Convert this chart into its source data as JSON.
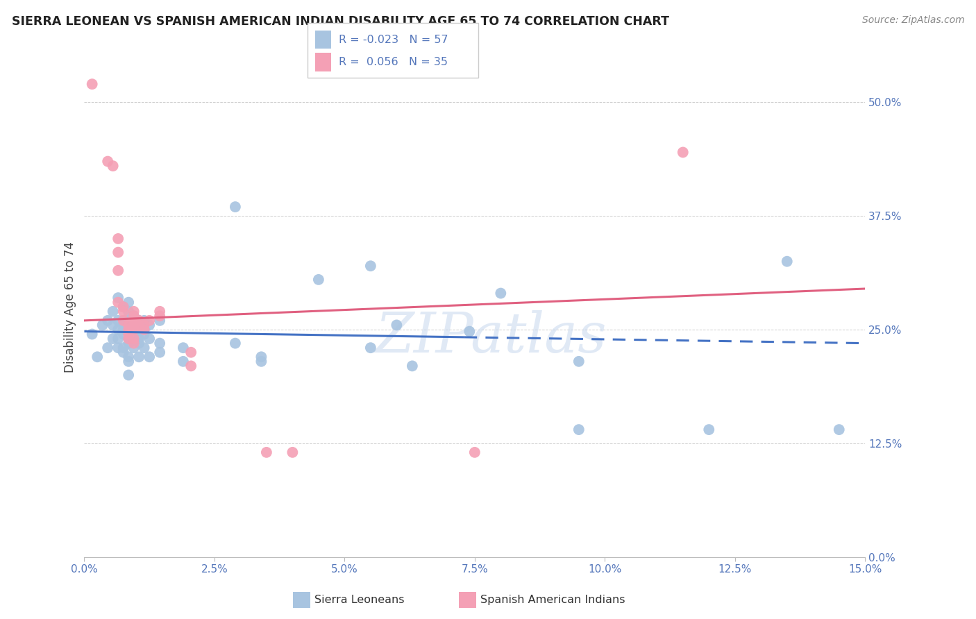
{
  "title": "SIERRA LEONEAN VS SPANISH AMERICAN INDIAN DISABILITY AGE 65 TO 74 CORRELATION CHART",
  "source": "Source: ZipAtlas.com",
  "ylabel": "Disability Age 65 to 74",
  "xlabel_vals": [
    0.0,
    2.5,
    5.0,
    7.5,
    10.0,
    12.5,
    15.0
  ],
  "ylabel_vals": [
    0.0,
    12.5,
    25.0,
    37.5,
    50.0
  ],
  "xmin": 0.0,
  "xmax": 15.0,
  "ymin": 0.0,
  "ymax": 55.0,
  "blue_color": "#a8c4e0",
  "pink_color": "#f4a0b5",
  "blue_line_color": "#4472c4",
  "pink_line_color": "#e06080",
  "watermark": "ZIPatlas",
  "blue_scatter": [
    [
      0.15,
      24.5
    ],
    [
      0.25,
      22.0
    ],
    [
      0.35,
      25.5
    ],
    [
      0.45,
      26.0
    ],
    [
      0.45,
      23.0
    ],
    [
      0.55,
      27.0
    ],
    [
      0.55,
      25.5
    ],
    [
      0.55,
      24.0
    ],
    [
      0.65,
      28.5
    ],
    [
      0.65,
      26.0
    ],
    [
      0.65,
      25.0
    ],
    [
      0.65,
      24.0
    ],
    [
      0.65,
      23.0
    ],
    [
      0.75,
      27.5
    ],
    [
      0.75,
      26.0
    ],
    [
      0.75,
      25.5
    ],
    [
      0.75,
      25.0
    ],
    [
      0.75,
      24.5
    ],
    [
      0.75,
      23.0
    ],
    [
      0.75,
      22.5
    ],
    [
      0.85,
      28.0
    ],
    [
      0.85,
      27.0
    ],
    [
      0.85,
      26.0
    ],
    [
      0.85,
      25.5
    ],
    [
      0.85,
      25.0
    ],
    [
      0.85,
      24.0
    ],
    [
      0.85,
      23.5
    ],
    [
      0.85,
      22.0
    ],
    [
      0.85,
      21.5
    ],
    [
      0.85,
      20.0
    ],
    [
      0.95,
      26.5
    ],
    [
      0.95,
      25.5
    ],
    [
      0.95,
      25.0
    ],
    [
      0.95,
      24.5
    ],
    [
      0.95,
      23.0
    ],
    [
      1.05,
      26.0
    ],
    [
      1.05,
      25.5
    ],
    [
      1.05,
      25.0
    ],
    [
      1.05,
      24.0
    ],
    [
      1.05,
      23.5
    ],
    [
      1.05,
      22.0
    ],
    [
      1.15,
      26.0
    ],
    [
      1.15,
      25.0
    ],
    [
      1.15,
      24.5
    ],
    [
      1.15,
      23.0
    ],
    [
      1.25,
      25.5
    ],
    [
      1.25,
      24.0
    ],
    [
      1.25,
      22.0
    ],
    [
      1.45,
      26.0
    ],
    [
      1.45,
      23.5
    ],
    [
      1.45,
      22.5
    ],
    [
      1.9,
      23.0
    ],
    [
      1.9,
      21.5
    ],
    [
      2.9,
      38.5
    ],
    [
      2.9,
      23.5
    ],
    [
      3.4,
      22.0
    ],
    [
      3.4,
      21.5
    ],
    [
      4.5,
      30.5
    ],
    [
      5.5,
      32.0
    ],
    [
      5.5,
      23.0
    ],
    [
      6.0,
      25.5
    ],
    [
      6.3,
      21.0
    ],
    [
      7.4,
      24.8
    ],
    [
      8.0,
      29.0
    ],
    [
      9.5,
      21.5
    ],
    [
      9.5,
      14.0
    ],
    [
      12.0,
      14.0
    ],
    [
      13.5,
      32.5
    ],
    [
      14.5,
      14.0
    ]
  ],
  "pink_scatter": [
    [
      0.15,
      52.0
    ],
    [
      0.45,
      43.5
    ],
    [
      0.55,
      43.0
    ],
    [
      0.65,
      35.0
    ],
    [
      0.65,
      33.5
    ],
    [
      0.65,
      31.5
    ],
    [
      0.65,
      28.0
    ],
    [
      0.75,
      27.5
    ],
    [
      0.75,
      27.0
    ],
    [
      0.75,
      26.0
    ],
    [
      0.85,
      25.5
    ],
    [
      0.85,
      25.0
    ],
    [
      0.85,
      24.5
    ],
    [
      0.85,
      24.0
    ],
    [
      0.95,
      27.0
    ],
    [
      0.95,
      26.5
    ],
    [
      0.95,
      26.0
    ],
    [
      0.95,
      25.5
    ],
    [
      0.95,
      25.0
    ],
    [
      0.95,
      24.0
    ],
    [
      0.95,
      23.5
    ],
    [
      1.05,
      26.0
    ],
    [
      1.05,
      25.5
    ],
    [
      1.15,
      25.5
    ],
    [
      1.15,
      25.0
    ],
    [
      1.25,
      26.0
    ],
    [
      1.45,
      27.0
    ],
    [
      1.45,
      26.5
    ],
    [
      2.05,
      22.5
    ],
    [
      2.05,
      21.0
    ],
    [
      3.5,
      11.5
    ],
    [
      4.0,
      11.5
    ],
    [
      7.5,
      11.5
    ],
    [
      11.5,
      44.5
    ]
  ],
  "blue_line_x0": 0.0,
  "blue_line_x1": 15.0,
  "blue_line_y0": 24.8,
  "blue_line_y1": 23.5,
  "blue_dash_start": 7.3,
  "pink_line_x0": 0.0,
  "pink_line_x1": 15.0,
  "pink_line_y0": 26.0,
  "pink_line_y1": 29.5
}
